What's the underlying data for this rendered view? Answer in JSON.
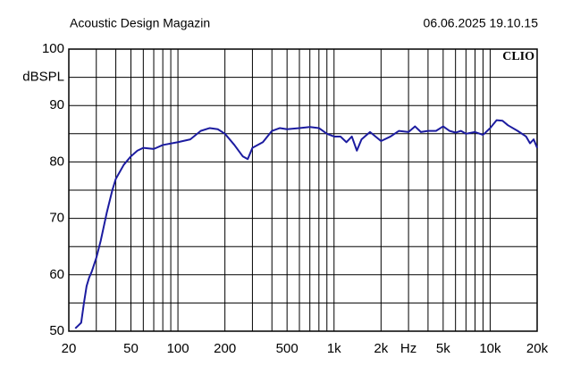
{
  "chart_data": {
    "type": "line",
    "title": "Acoustic Design Magazin",
    "timestamp": "06.06.2025 19.10.15",
    "brand": "CLIO",
    "y_label": "dBSPL",
    "x_scale": "log",
    "xlim": [
      20,
      20000
    ],
    "ylim": [
      50,
      100
    ],
    "xticks": [
      20,
      50,
      100,
      200,
      500,
      {
        "value": 1000,
        "label": "1k"
      },
      {
        "value": 2000,
        "label": "2k"
      },
      {
        "value": 3000,
        "label": "Hz"
      },
      {
        "value": 5000,
        "label": "5k"
      },
      {
        "value": 10000,
        "label": "10k"
      },
      {
        "value": 20000,
        "label": "20k"
      }
    ],
    "xgrid": [
      30,
      40,
      60,
      70,
      80,
      90,
      300,
      400,
      600,
      700,
      800,
      900,
      4000,
      6000,
      7000,
      8000,
      9000
    ],
    "yticks": [
      50,
      60,
      70,
      80,
      90,
      100
    ],
    "ygrid": [
      55,
      65,
      75,
      85,
      95
    ],
    "color": "#1c1ca0",
    "x": [
      22,
      23,
      24,
      25,
      26,
      27,
      28,
      30,
      32,
      35,
      38,
      40,
      45,
      50,
      55,
      60,
      70,
      80,
      100,
      120,
      140,
      160,
      180,
      200,
      230,
      260,
      280,
      300,
      350,
      400,
      450,
      500,
      600,
      700,
      800,
      900,
      1000,
      1100,
      1200,
      1300,
      1400,
      1500,
      1700,
      2000,
      2300,
      2600,
      3000,
      3300,
      3600,
      4000,
      4500,
      5000,
      5500,
      6000,
      6500,
      7000,
      8000,
      9000,
      10000,
      11000,
      12000,
      13000,
      15000,
      17000,
      18000,
      19000,
      20000
    ],
    "values": [
      50.5,
      51,
      51.5,
      55,
      58,
      59.5,
      60.5,
      63,
      66,
      71,
      75,
      77,
      79.5,
      81,
      82,
      82.5,
      82.3,
      83,
      83.5,
      84,
      85.5,
      86,
      85.8,
      85,
      83,
      81,
      80.5,
      82.5,
      83.5,
      85.5,
      86,
      85.8,
      86,
      86.2,
      86,
      85,
      84.5,
      84.5,
      83.5,
      84.5,
      82,
      84,
      85.3,
      83.7,
      84.5,
      85.5,
      85.3,
      86.3,
      85.3,
      85.5,
      85.5,
      86.3,
      85.5,
      85.2,
      85.5,
      85,
      85.3,
      84.8,
      86,
      87.4,
      87.3,
      86.5,
      85.5,
      84.5,
      83.3,
      84,
      82.5
    ]
  }
}
